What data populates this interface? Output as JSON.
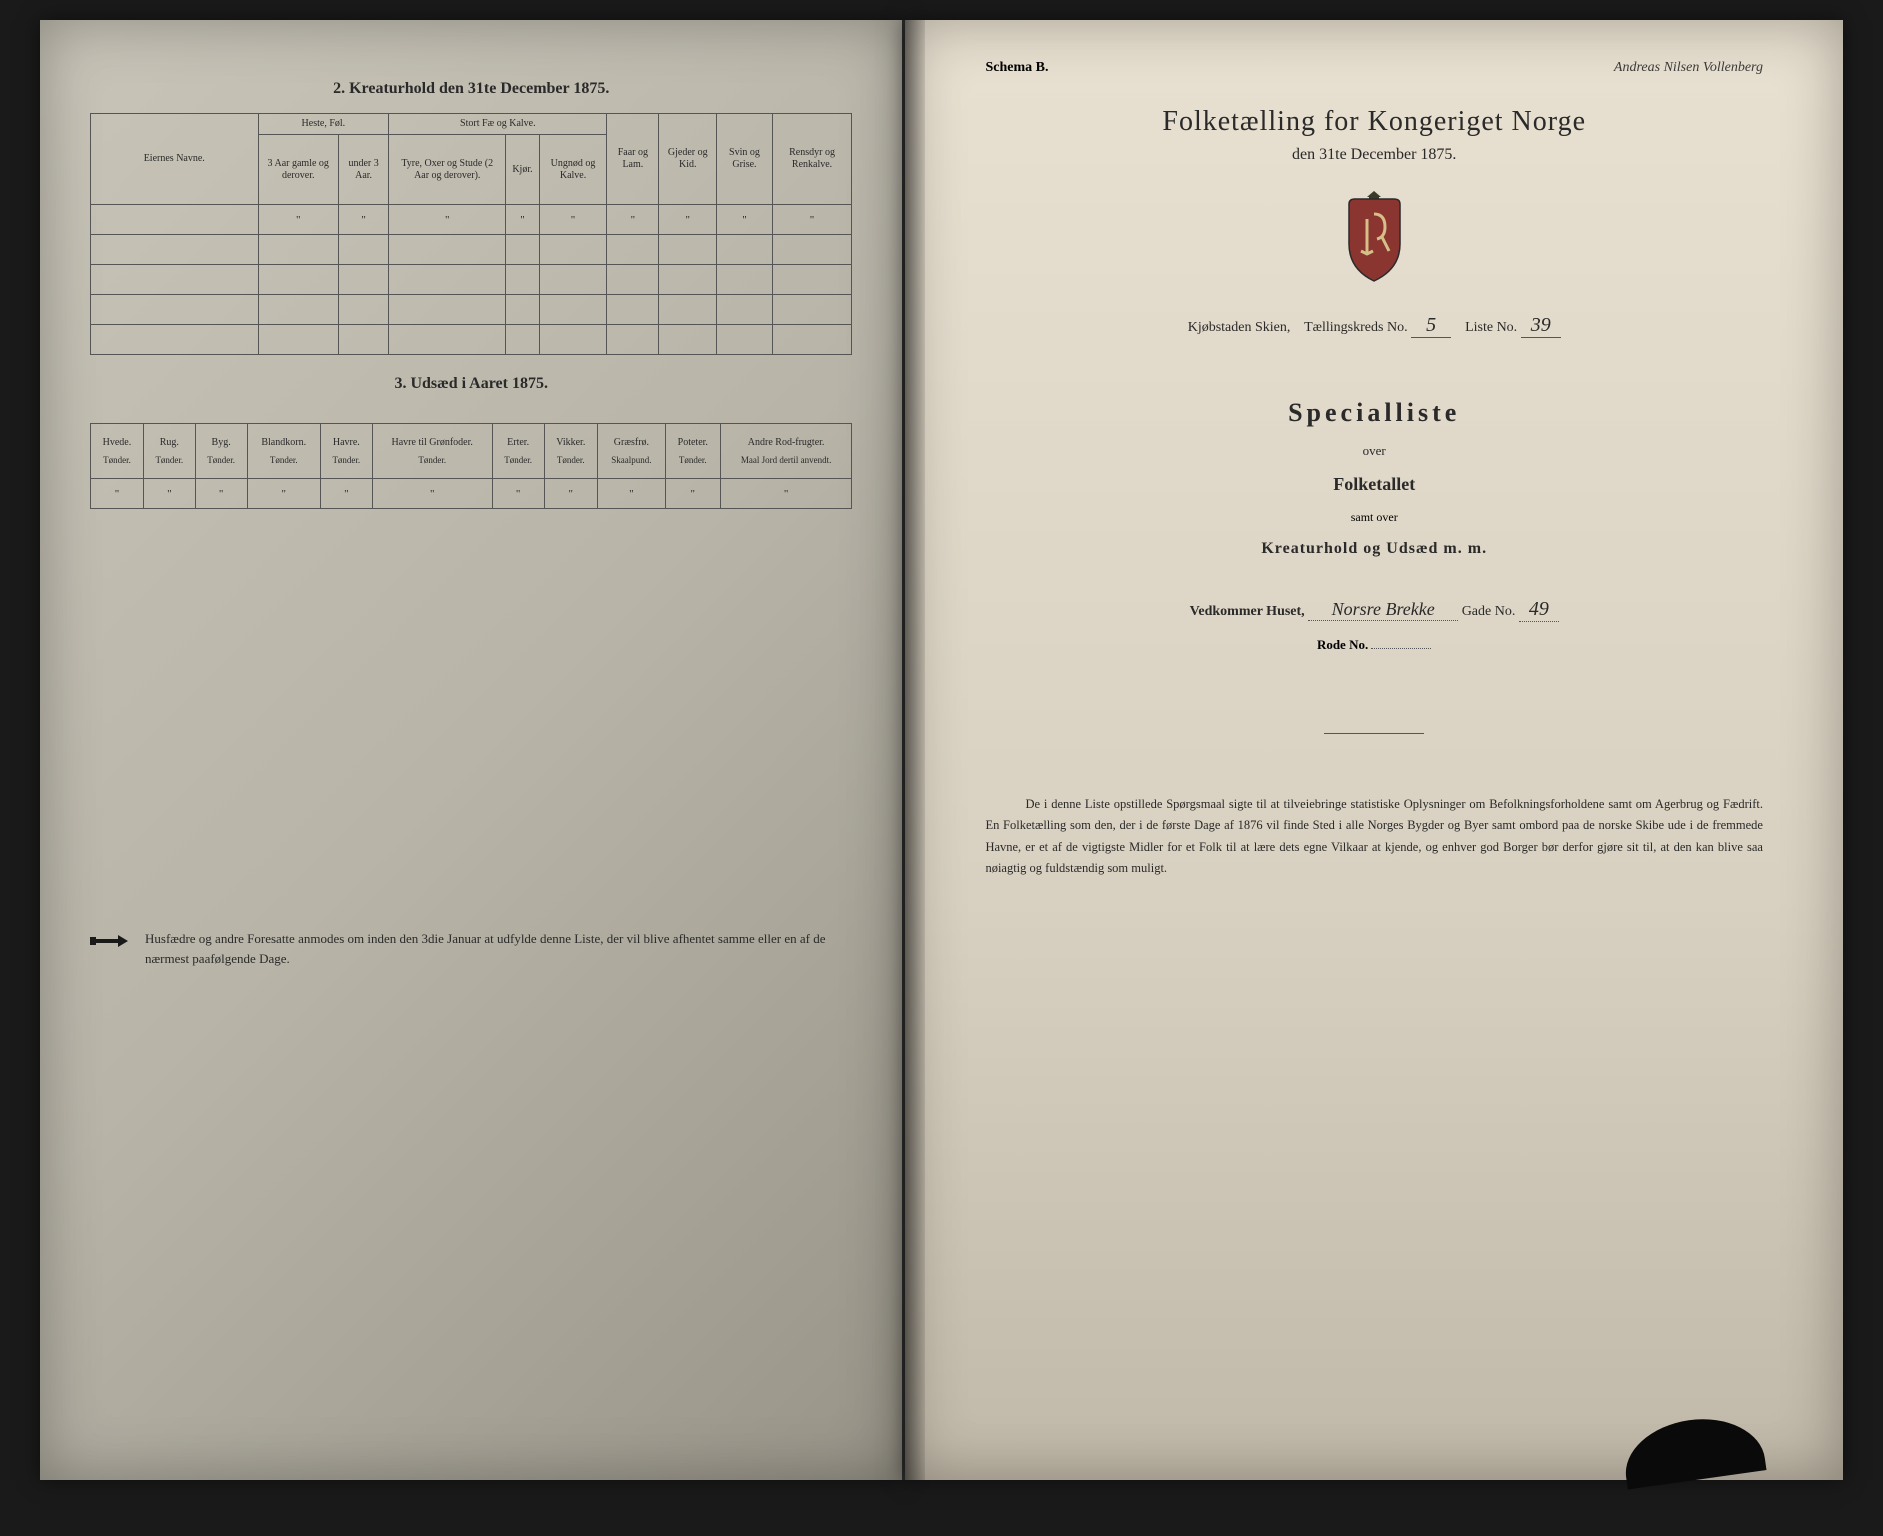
{
  "left": {
    "section2_title": "2. Kreaturhold den 31te December 1875.",
    "table2": {
      "col_eier": "Eiernes Navne.",
      "grp_heste": "Heste, Føl.",
      "grp_storfe": "Stort Fæ og Kalve.",
      "col_faar": "Faar og Lam.",
      "col_gjed": "Gjeder og Kid.",
      "col_svin": "Svin og Grise.",
      "col_ren": "Rensdyr og Renkalve.",
      "sub_heste1": "3 Aar gamle og derover.",
      "sub_heste2": "under 3 Aar.",
      "sub_fe1": "Tyre, Oxer og Stude (2 Aar og derover).",
      "sub_fe2": "Kjør.",
      "sub_fe3": "Ungnød og Kalve."
    },
    "section3_title": "3. Udsæd i Aaret 1875.",
    "table3": {
      "cols": [
        {
          "name": "Hvede.",
          "unit": "Tønder."
        },
        {
          "name": "Rug.",
          "unit": "Tønder."
        },
        {
          "name": "Byg.",
          "unit": "Tønder."
        },
        {
          "name": "Blandkorn.",
          "unit": "Tønder."
        },
        {
          "name": "Havre.",
          "unit": "Tønder."
        },
        {
          "name": "Havre til Grønfoder.",
          "unit": "Tønder."
        },
        {
          "name": "Erter.",
          "unit": "Tønder."
        },
        {
          "name": "Vikker.",
          "unit": "Tønder."
        },
        {
          "name": "Græsfrø.",
          "unit": "Skaalpund."
        },
        {
          "name": "Poteter.",
          "unit": "Tønder."
        },
        {
          "name": "Andre Rod-frugter.",
          "unit": "Maal Jord dertil anvendt."
        }
      ]
    },
    "footer": "Husfædre og andre Foresatte anmodes om inden den 3die Januar at udfylde denne Liste, der vil blive afhentet samme eller en af de nærmest paafølgende Dage."
  },
  "right": {
    "schema": "Schema B.",
    "signature": "Andreas Nilsen Vollenberg",
    "main_title": "Folketælling for Kongeriget Norge",
    "sub_date": "den 31te December 1875.",
    "meta_prefix": "Kjøbstaden Skien,",
    "meta_kreds_label": "Tællingskreds No.",
    "meta_kreds_val": "5",
    "meta_liste_label": "Liste No.",
    "meta_liste_val": "39",
    "special": "Specialliste",
    "over1": "over",
    "folketallet": "Folketallet",
    "samt": "samt over",
    "kreatur": "Kreaturhold og Udsæd m. m.",
    "vedkommer_label": "Vedkommer Huset,",
    "vedkommer_val": "Norsre Brekke",
    "gade_label": "Gade No.",
    "gade_val": "49",
    "rode": "Rode No.",
    "paragraph": "De i denne Liste opstillede Spørgsmaal sigte til at tilveiebringe statistiske Oplysninger om Befolkningsforholdene samt om Agerbrug og Fædrift. En Folketælling som den, der i de første Dage af 1876 vil finde Sted i alle Norges Bygder og Byer samt ombord paa de norske Skibe ude i de fremmede Havne, er et af de vigtigste Midler for et Folk til at lære dets egne Vilkaar at kjende, og enhver god Borger bør derfor gjøre sit til, at den kan blive saa nøiagtig og fuldstændig som muligt."
  }
}
